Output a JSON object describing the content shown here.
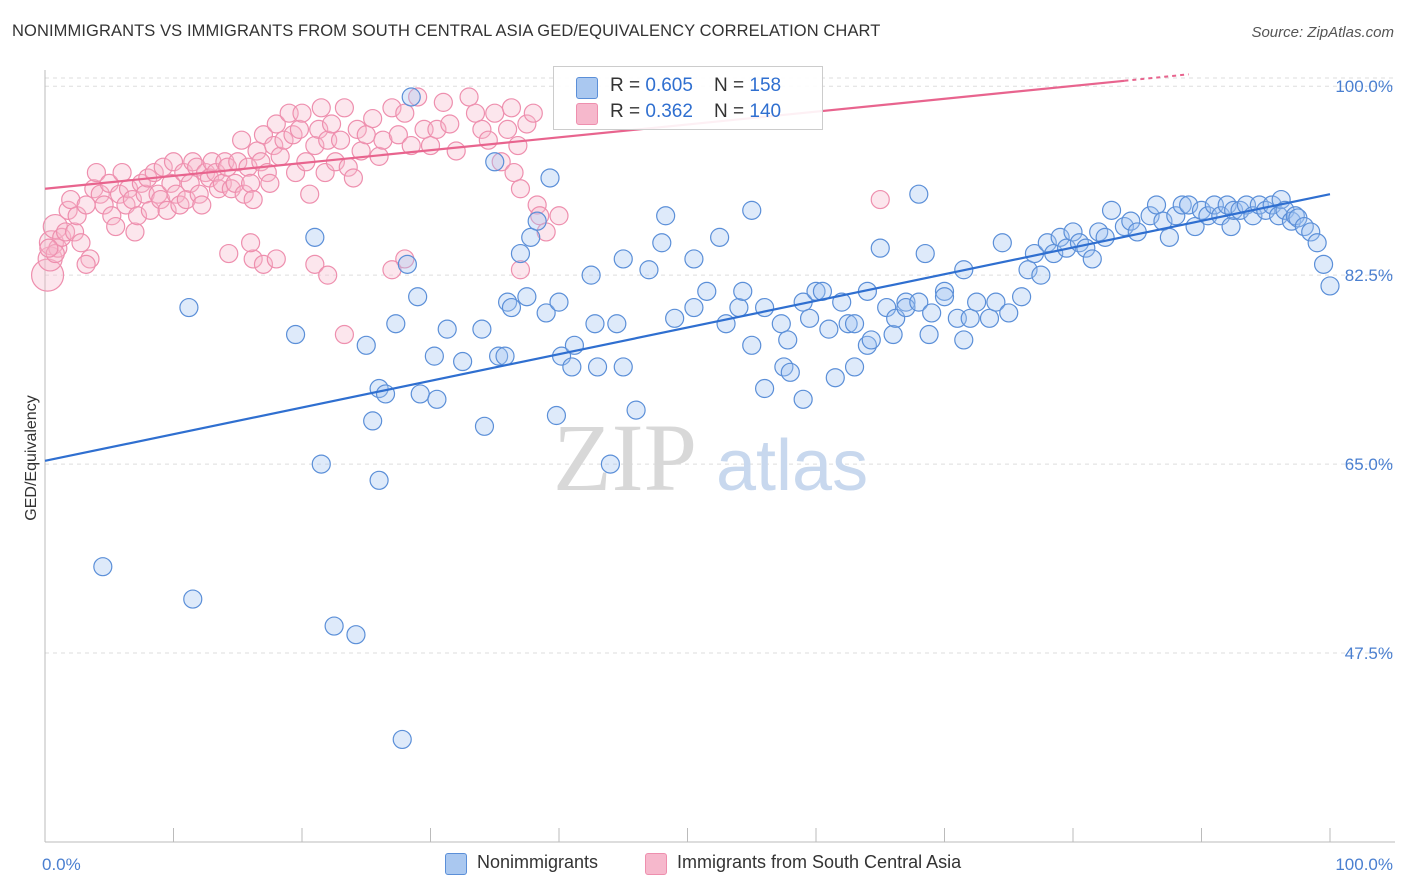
{
  "header": {
    "title": "NONIMMIGRANTS VS IMMIGRANTS FROM SOUTH CENTRAL ASIA GED/EQUIVALENCY CORRELATION CHART",
    "source": "Source: ZipAtlas.com"
  },
  "watermark": {
    "zip": "ZIP",
    "atlas": "atlas"
  },
  "legend_top": [
    {
      "swatch_color": "#aac8f0",
      "r_label": "R = ",
      "r_value": "0.605",
      "n_label": "N = ",
      "n_value": "158"
    },
    {
      "swatch_color": "#f6b8cc",
      "r_label": "R = ",
      "r_value": "0.362",
      "n_label": "N = ",
      "n_value": "140"
    }
  ],
  "legend_bottom": [
    {
      "label": "Nonimmigrants",
      "swatch_color": "#aac8f0"
    },
    {
      "label": "Immigrants from South Central Asia",
      "swatch_color": "#f6b8cc"
    }
  ],
  "colors": {
    "blue_stroke": "#5b8fd8",
    "blue_fill": "rgba(160,195,240,0.35)",
    "blue_line": "#2f6fd0",
    "pink_stroke": "#ee8fae",
    "pink_fill": "rgba(246,184,204,0.35)",
    "pink_line": "#e8648e",
    "axis_label": "#4a7fd0",
    "grid": "#dddddd"
  },
  "chart_data": {
    "type": "scatter",
    "title": "NONIMMIGRANTS VS IMMIGRANTS FROM SOUTH CENTRAL ASIA GED/EQUIVALENCY CORRELATION CHART",
    "xlabel": "",
    "ylabel": "GED/Equivalency",
    "xlim": [
      0,
      100
    ],
    "ylim": [
      30,
      101.5
    ],
    "x_tick_labels": [
      "0.0%",
      "100.0%"
    ],
    "y_ticks": [
      47.5,
      65.0,
      82.5,
      100.0
    ],
    "y_tick_labels": [
      "47.5%",
      "65.0%",
      "82.5%",
      "100.0%"
    ],
    "grid": true,
    "legend_position": "top-center",
    "series": [
      {
        "name": "Nonimmigrants",
        "R": 0.605,
        "N": 158,
        "trend": {
          "x": [
            0,
            100
          ],
          "y": [
            65.3,
            90.0
          ]
        },
        "points": [
          [
            4.5,
            55.5
          ],
          [
            11.5,
            52.5
          ],
          [
            11.2,
            79.5
          ],
          [
            19.5,
            77
          ],
          [
            21,
            86
          ],
          [
            21.5,
            65
          ],
          [
            22.5,
            50
          ],
          [
            24.2,
            49.2
          ],
          [
            25,
            76
          ],
          [
            25.5,
            69
          ],
          [
            26,
            72
          ],
          [
            26,
            63.5
          ],
          [
            26.5,
            71.5
          ],
          [
            27.3,
            78
          ],
          [
            28.2,
            83.5
          ],
          [
            27.8,
            39.5
          ],
          [
            28.5,
            99
          ],
          [
            29,
            80.5
          ],
          [
            29.2,
            71.5
          ],
          [
            30.3,
            75
          ],
          [
            30.5,
            71
          ],
          [
            31.3,
            77.5
          ],
          [
            32.5,
            74.5
          ],
          [
            34,
            77.5
          ],
          [
            34.2,
            68.5
          ],
          [
            35,
            93
          ],
          [
            35.3,
            75
          ],
          [
            35.8,
            75
          ],
          [
            36,
            80
          ],
          [
            36.3,
            79.5
          ],
          [
            37,
            84.5
          ],
          [
            37.5,
            80.5
          ],
          [
            37.8,
            86
          ],
          [
            38.3,
            87.5
          ],
          [
            39,
            79
          ],
          [
            39.3,
            91.5
          ],
          [
            40,
            80
          ],
          [
            39.8,
            69.5
          ],
          [
            40.2,
            75
          ],
          [
            41,
            74
          ],
          [
            41.2,
            76
          ],
          [
            42.5,
            82.5
          ],
          [
            43,
            74
          ],
          [
            42.8,
            78
          ],
          [
            44,
            65
          ],
          [
            44.5,
            78
          ],
          [
            45,
            84
          ],
          [
            45,
            74
          ],
          [
            46,
            70
          ],
          [
            47,
            83
          ],
          [
            48,
            85.5
          ],
          [
            49,
            78.5
          ],
          [
            48.3,
            88
          ],
          [
            50.5,
            84
          ],
          [
            50.5,
            79.5
          ],
          [
            51.5,
            81
          ],
          [
            52.5,
            86
          ],
          [
            53,
            78
          ],
          [
            54,
            79.5
          ],
          [
            55,
            76
          ],
          [
            55,
            88.5
          ],
          [
            54.3,
            81
          ],
          [
            56,
            79.5
          ],
          [
            56,
            72
          ],
          [
            57.5,
            74
          ],
          [
            57.3,
            78
          ],
          [
            57.8,
            76.5
          ],
          [
            58,
            73.5
          ],
          [
            59,
            80
          ],
          [
            59,
            71
          ],
          [
            59.5,
            78.5
          ],
          [
            60,
            81
          ],
          [
            60.5,
            81
          ],
          [
            61,
            77.5
          ],
          [
            61.5,
            73
          ],
          [
            62,
            80
          ],
          [
            62.5,
            78
          ],
          [
            63,
            78
          ],
          [
            63,
            74
          ],
          [
            64,
            81
          ],
          [
            64,
            76
          ],
          [
            64.3,
            76.5
          ],
          [
            65,
            85
          ],
          [
            65.5,
            79.5
          ],
          [
            66,
            77
          ],
          [
            66.2,
            78.5
          ],
          [
            67,
            80
          ],
          [
            67,
            79.5
          ],
          [
            68,
            80
          ],
          [
            68.5,
            84.5
          ],
          [
            68.8,
            77
          ],
          [
            69,
            79
          ],
          [
            70,
            81
          ],
          [
            70,
            80.5
          ],
          [
            71,
            78.5
          ],
          [
            71.5,
            76.5
          ],
          [
            71.5,
            83
          ],
          [
            72,
            78.5
          ],
          [
            72.5,
            80
          ],
          [
            73.5,
            78.5
          ],
          [
            74,
            80
          ],
          [
            74.5,
            85.5
          ],
          [
            75,
            79
          ],
          [
            76,
            80.5
          ],
          [
            76.5,
            83
          ],
          [
            77,
            84.5
          ],
          [
            77.5,
            82.5
          ],
          [
            78,
            85.5
          ],
          [
            78.5,
            84.5
          ],
          [
            79,
            86
          ],
          [
            79.5,
            85
          ],
          [
            80,
            86.5
          ],
          [
            80.5,
            85.5
          ],
          [
            81,
            85
          ],
          [
            81.5,
            84
          ],
          [
            82,
            86.5
          ],
          [
            82.5,
            86
          ],
          [
            83,
            88.5
          ],
          [
            84,
            87
          ],
          [
            84.5,
            87.5
          ],
          [
            85,
            86.5
          ],
          [
            86,
            88
          ],
          [
            86.5,
            89
          ],
          [
            87,
            87.5
          ],
          [
            87.5,
            86
          ],
          [
            88,
            88
          ],
          [
            88.5,
            89
          ],
          [
            89,
            89
          ],
          [
            89.5,
            87
          ],
          [
            90,
            88.5
          ],
          [
            90.5,
            88
          ],
          [
            91,
            89
          ],
          [
            91.5,
            88
          ],
          [
            92,
            89
          ],
          [
            92.3,
            87
          ],
          [
            92.5,
            88.5
          ],
          [
            93,
            88.5
          ],
          [
            93.5,
            89
          ],
          [
            94,
            88
          ],
          [
            94.5,
            89
          ],
          [
            95,
            88.5
          ],
          [
            95.5,
            89
          ],
          [
            96,
            88
          ],
          [
            96.2,
            89.5
          ],
          [
            96.5,
            88.5
          ],
          [
            97,
            87.5
          ],
          [
            97.3,
            88
          ],
          [
            97.5,
            87.8
          ],
          [
            98,
            87
          ],
          [
            98.5,
            86.5
          ],
          [
            99,
            85.5
          ],
          [
            99.5,
            83.5
          ],
          [
            100,
            81.5
          ],
          [
            68,
            90
          ]
        ]
      },
      {
        "name": "Immigrants from South Central Asia",
        "R": 0.362,
        "N": 140,
        "trend": {
          "x": [
            0,
            84
          ],
          "y": [
            90.5,
            100.5
          ]
        },
        "points": [
          [
            0.2,
            82.5
          ],
          [
            0.4,
            84
          ],
          [
            0.5,
            85.5
          ],
          [
            0.8,
            87
          ],
          [
            1,
            85
          ],
          [
            1.3,
            86
          ],
          [
            1.6,
            86.5
          ],
          [
            1.8,
            88.5
          ],
          [
            2,
            89.5
          ],
          [
            2.3,
            86.5
          ],
          [
            2.5,
            88
          ],
          [
            2.8,
            85.5
          ],
          [
            3.2,
            89
          ],
          [
            3.5,
            84
          ],
          [
            3.8,
            90.5
          ],
          [
            4,
            92
          ],
          [
            4.3,
            90
          ],
          [
            4.6,
            89
          ],
          [
            5,
            91
          ],
          [
            5.2,
            88
          ],
          [
            5.5,
            87
          ],
          [
            5.8,
            90
          ],
          [
            6,
            92
          ],
          [
            6.3,
            89
          ],
          [
            6.5,
            90.5
          ],
          [
            6.8,
            89.5
          ],
          [
            7,
            86.5
          ],
          [
            7.2,
            88
          ],
          [
            7.5,
            91
          ],
          [
            7.8,
            90
          ],
          [
            8,
            91.5
          ],
          [
            8.2,
            88.5
          ],
          [
            8.5,
            92
          ],
          [
            8.8,
            90
          ],
          [
            9,
            89.5
          ],
          [
            9.2,
            92.5
          ],
          [
            9.5,
            88.5
          ],
          [
            9.8,
            91
          ],
          [
            10,
            93
          ],
          [
            10.2,
            90
          ],
          [
            10.5,
            89
          ],
          [
            10.8,
            92
          ],
          [
            11,
            89.5
          ],
          [
            11.3,
            91
          ],
          [
            11.5,
            93
          ],
          [
            11.8,
            92.5
          ],
          [
            12,
            90
          ],
          [
            12.2,
            89
          ],
          [
            12.5,
            92
          ],
          [
            12.8,
            91.5
          ],
          [
            13,
            93
          ],
          [
            13.3,
            92
          ],
          [
            13.5,
            90.5
          ],
          [
            13.8,
            91
          ],
          [
            14,
            93
          ],
          [
            14.2,
            92.5
          ],
          [
            14.5,
            90.5
          ],
          [
            14.8,
            91
          ],
          [
            15,
            93
          ],
          [
            15.3,
            95
          ],
          [
            15.5,
            90
          ],
          [
            15.8,
            92.5
          ],
          [
            16,
            91
          ],
          [
            16.2,
            89.5
          ],
          [
            16.5,
            94
          ],
          [
            16.8,
            93
          ],
          [
            17,
            95.5
          ],
          [
            17.3,
            92
          ],
          [
            17.5,
            91
          ],
          [
            17.8,
            94.5
          ],
          [
            18,
            96.5
          ],
          [
            18.3,
            93.5
          ],
          [
            18.6,
            95
          ],
          [
            19,
            97.5
          ],
          [
            19.3,
            95.5
          ],
          [
            19.5,
            92
          ],
          [
            19.8,
            96
          ],
          [
            20,
            97.5
          ],
          [
            20.3,
            93
          ],
          [
            20.6,
            90
          ],
          [
            21,
            94.5
          ],
          [
            21.3,
            96
          ],
          [
            21.5,
            98
          ],
          [
            21.8,
            92
          ],
          [
            22,
            95
          ],
          [
            22.3,
            96.5
          ],
          [
            22.6,
            93
          ],
          [
            23,
            95
          ],
          [
            23.3,
            98
          ],
          [
            23.6,
            92.5
          ],
          [
            24,
            91.5
          ],
          [
            24.3,
            96
          ],
          [
            24.6,
            94
          ],
          [
            25,
            95.5
          ],
          [
            25.5,
            97
          ],
          [
            26,
            93.5
          ],
          [
            26.3,
            95
          ],
          [
            27,
            98
          ],
          [
            27.5,
            95.5
          ],
          [
            28,
            97.5
          ],
          [
            28.5,
            94.5
          ],
          [
            29,
            99
          ],
          [
            29.5,
            96
          ],
          [
            30,
            94.5
          ],
          [
            30.5,
            96
          ],
          [
            31,
            98.5
          ],
          [
            31.5,
            96.5
          ],
          [
            32,
            94
          ],
          [
            33,
            99
          ],
          [
            33.5,
            97.5
          ],
          [
            34,
            96
          ],
          [
            34.5,
            95
          ],
          [
            35,
            97.5
          ],
          [
            35.5,
            93
          ],
          [
            36,
            96
          ],
          [
            36.3,
            98
          ],
          [
            36.5,
            92
          ],
          [
            36.8,
            94.5
          ],
          [
            37,
            90.5
          ],
          [
            37.5,
            96.5
          ],
          [
            38,
            97.5
          ],
          [
            38.3,
            89
          ],
          [
            38.5,
            88
          ],
          [
            39,
            86.5
          ],
          [
            40,
            88
          ],
          [
            16.2,
            84
          ],
          [
            17,
            83.5
          ],
          [
            14.3,
            84.5
          ],
          [
            18,
            84
          ],
          [
            21,
            83.5
          ],
          [
            22,
            82.5
          ],
          [
            23.3,
            77
          ],
          [
            28,
            84
          ],
          [
            27,
            83
          ],
          [
            37,
            83
          ],
          [
            16,
            85.5
          ],
          [
            65,
            89.5
          ],
          [
            0.8,
            84.5
          ],
          [
            3.2,
            83.5
          ],
          [
            0.3,
            85
          ]
        ]
      }
    ]
  }
}
